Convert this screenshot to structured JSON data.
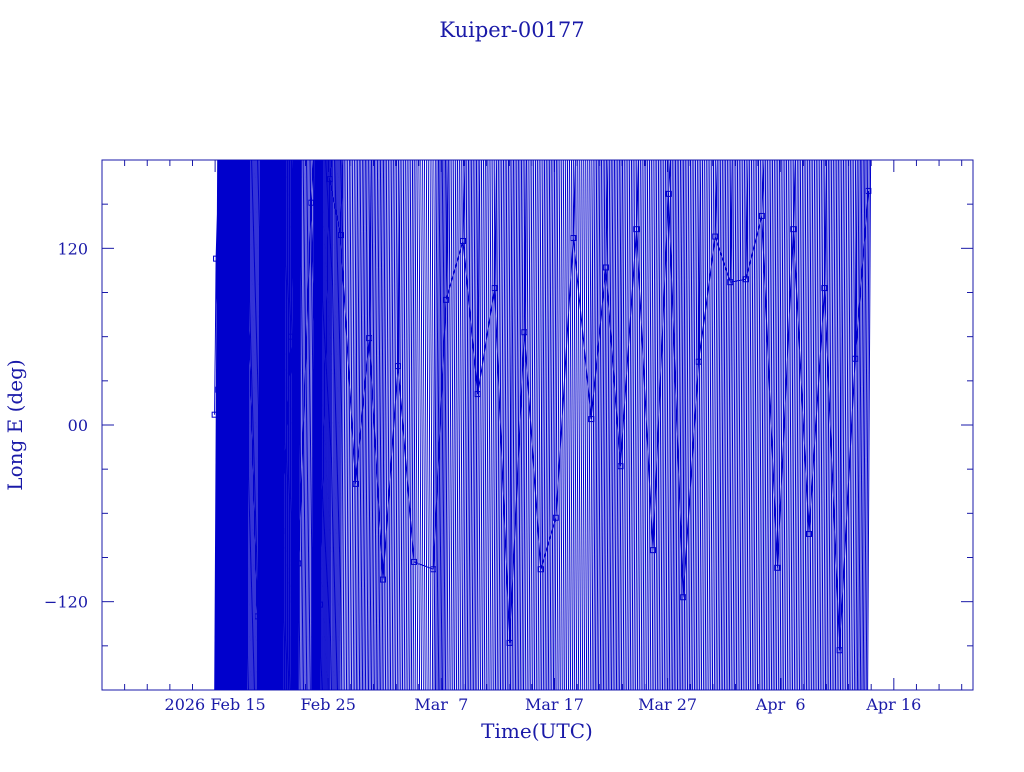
{
  "chart_data": {
    "type": "scatter",
    "title": "Kuiper-00177",
    "xlabel": "Time(UTC)",
    "ylabel": "Long E (deg)",
    "x_axis": {
      "type": "date",
      "range": [
        "2026-02-05",
        "2026-04-23"
      ],
      "tick_labels": [
        "2026 Feb 15",
        "Feb 25",
        "Mar  7",
        "Mar 17",
        "Mar 27",
        "Apr  6",
        "Apr 16"
      ],
      "tick_dates": [
        "2026-02-15",
        "2026-02-25",
        "2026-03-07",
        "2026-03-17",
        "2026-03-27",
        "2026-04-06",
        "2026-04-16"
      ]
    },
    "y_axis": {
      "range": [
        -180,
        180
      ],
      "ticks": [
        -120,
        0,
        120
      ],
      "tick_labels": [
        "−120",
        "00",
        "120"
      ]
    },
    "grid": false,
    "legend": "none",
    "colors": {
      "axis": "#1a1aa8",
      "series": "#0000cc"
    },
    "marker": "open-square",
    "series": [
      {
        "x": [
          "2026-02-14T23:00",
          "2026-02-15T02:00",
          "2026-02-15T07:00",
          "2026-02-15T17:00",
          "2026-02-16T11:00",
          "2026-02-16T18:00",
          "2026-02-17T07:00",
          "2026-02-17T19:00",
          "2026-02-18T18:00",
          "2026-02-19T08:00",
          "2026-02-19T17:00",
          "2026-02-20T10:00",
          "2026-02-20T21:00",
          "2026-02-21T17:00",
          "2026-02-22T09:00",
          "2026-02-23T12:00",
          "2026-02-24T06:00",
          "2026-02-25T03:00",
          "2026-02-26T02:00",
          "2026-02-27T10:00",
          "2026-02-28T15:00",
          "2026-03-01T20:00",
          "2026-03-03T04:00",
          "2026-03-04T14:00",
          "2026-03-06T07:00",
          "2026-03-07T10:00",
          "2026-03-08T22:00",
          "2026-03-10T05:00",
          "2026-03-11T17:00",
          "2026-03-13T01:00",
          "2026-03-14T08:00",
          "2026-03-15T19:00",
          "2026-03-17T03:00",
          "2026-03-18T16:00",
          "2026-03-20T06:00",
          "2026-03-21T13:00",
          "2026-03-22T20:00",
          "2026-03-24T06:00",
          "2026-03-25T17:00",
          "2026-03-27T02:00",
          "2026-03-28T09:00",
          "2026-03-29T18:00",
          "2026-03-31T05:00",
          "2026-04-01T13:00",
          "2026-04-02T22:00",
          "2026-04-04T08:00",
          "2026-04-05T17:00",
          "2026-04-07T03:00",
          "2026-04-08T12:00",
          "2026-04-09T21:00",
          "2026-04-11T05:00",
          "2026-04-12T14:00",
          "2026-04-13T18:00"
        ],
        "y": [
          7,
          113,
          24,
          -107,
          -85,
          116,
          -79,
          127,
          -130,
          111,
          17,
          102,
          -72,
          60,
          -94,
          151,
          -122,
          167,
          129,
          -40,
          59,
          -105,
          40,
          -93,
          -98,
          85,
          125,
          21,
          93,
          -148,
          63,
          -98,
          -63,
          127,
          4,
          107,
          -28,
          133,
          -85,
          157,
          -117,
          43,
          128,
          97,
          99,
          142,
          -97,
          133,
          -74,
          93,
          -153,
          45,
          159
        ]
      }
    ]
  }
}
